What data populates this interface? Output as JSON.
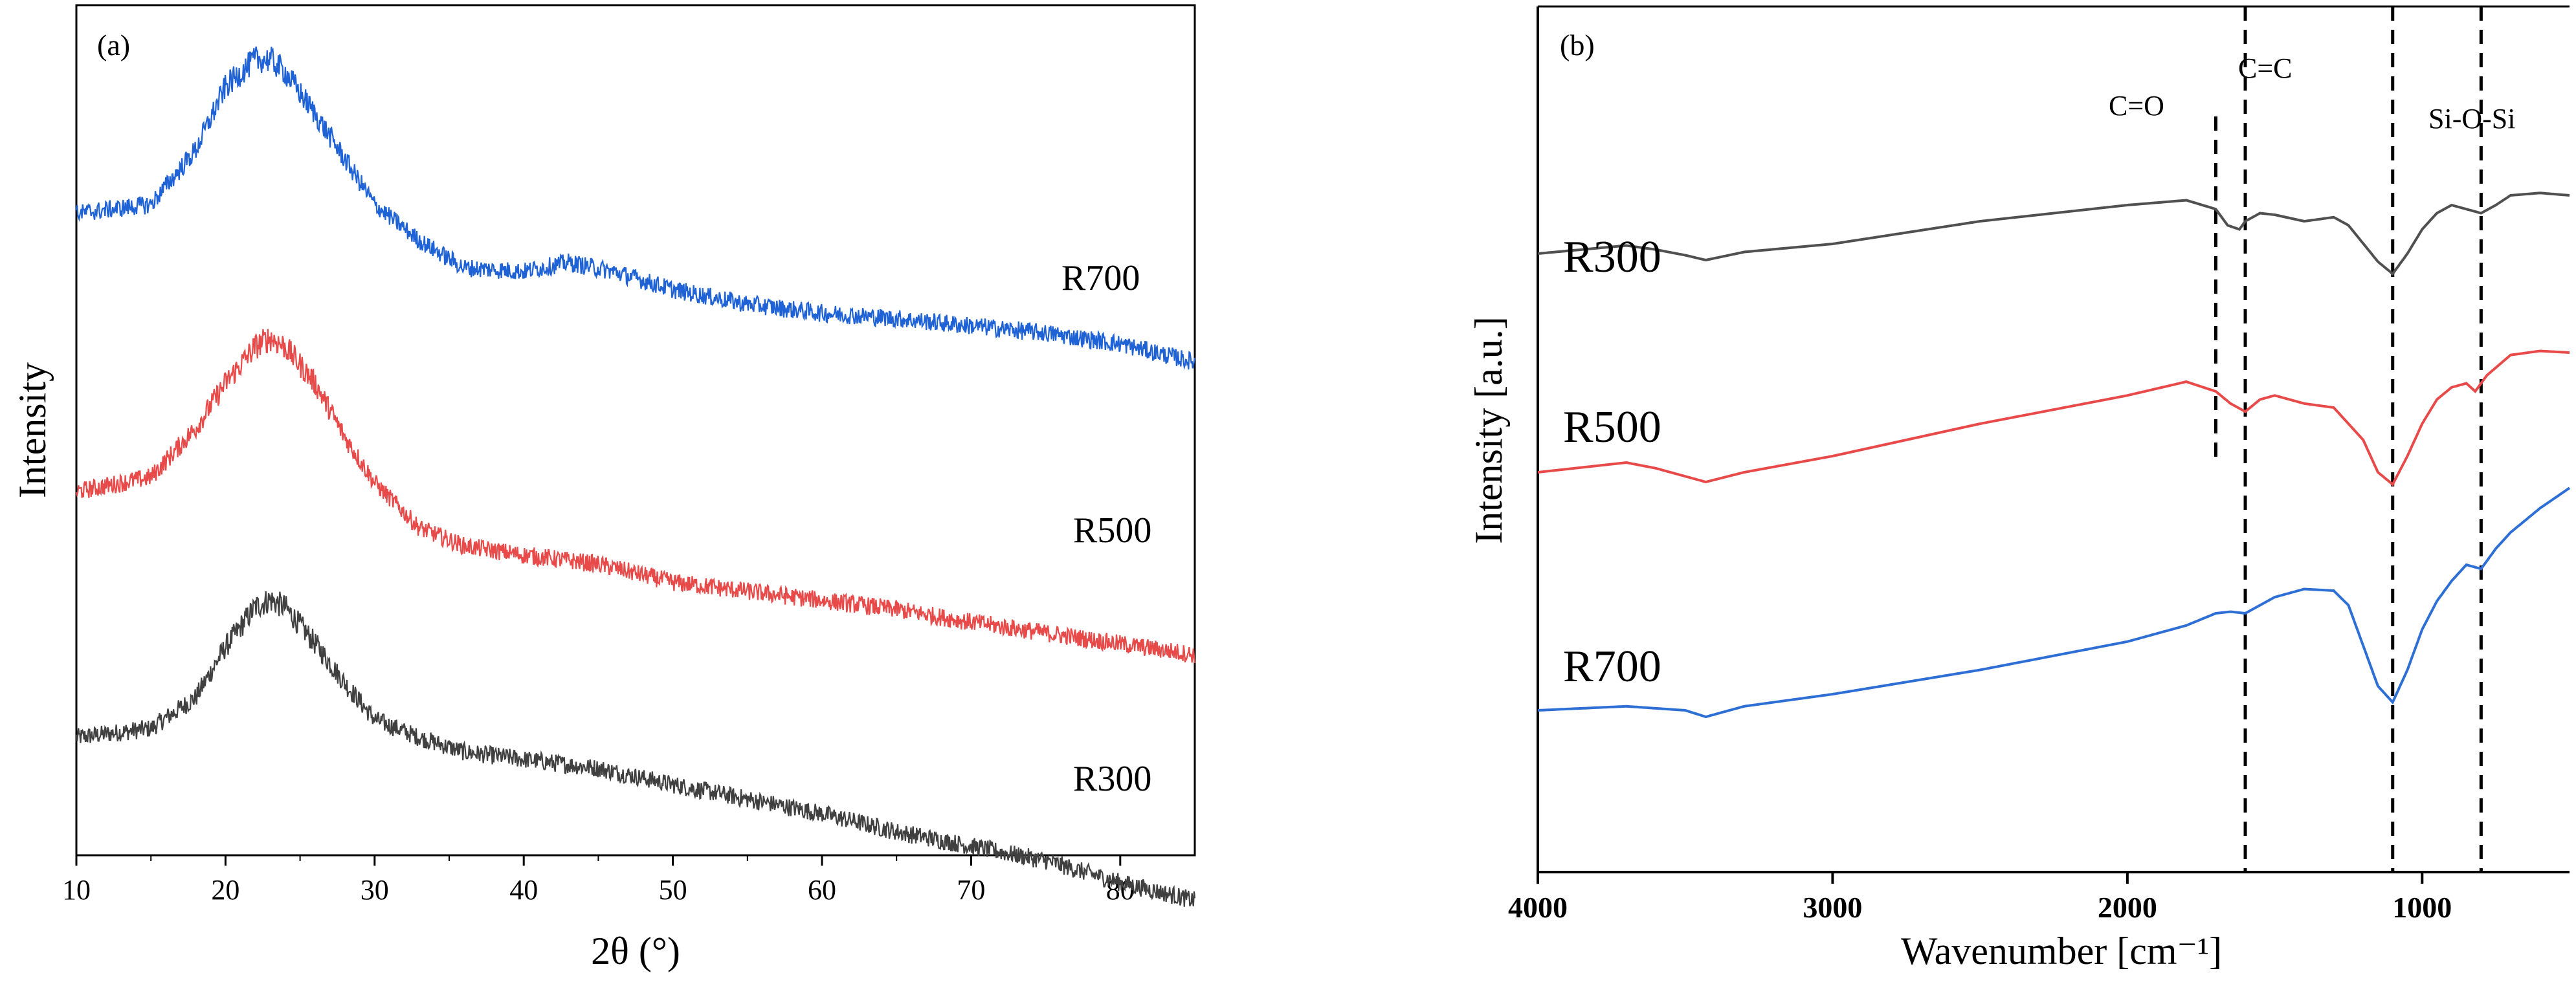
{
  "chart_data": [
    {
      "type": "line",
      "panel_label": "(a)",
      "xlabel": "2θ (°)",
      "ylabel": "Intensity",
      "xlim": [
        10,
        85
      ],
      "xticks": [
        10,
        20,
        30,
        40,
        50,
        60,
        70,
        80
      ],
      "yticks_shown": false,
      "noise": 0.05,
      "series": [
        {
          "name": "R300",
          "color": "#404040",
          "points": [
            [
              10,
              0.0
            ],
            [
              15,
              0.05
            ],
            [
              18,
              0.22
            ],
            [
              20,
              0.5
            ],
            [
              22,
              0.72
            ],
            [
              23,
              0.76
            ],
            [
              24,
              0.72
            ],
            [
              26,
              0.52
            ],
            [
              28,
              0.3
            ],
            [
              30,
              0.1
            ],
            [
              33,
              0.0
            ],
            [
              36,
              -0.08
            ],
            [
              40,
              -0.12
            ],
            [
              45,
              -0.17
            ],
            [
              50,
              -0.26
            ],
            [
              55,
              -0.34
            ],
            [
              60,
              -0.42
            ],
            [
              65,
              -0.52
            ],
            [
              70,
              -0.6
            ],
            [
              75,
              -0.68
            ],
            [
              80,
              -0.8
            ],
            [
              85,
              -0.9
            ]
          ]
        },
        {
          "name": "R500",
          "color": "#e84a4a",
          "points": [
            [
              10,
              0.0
            ],
            [
              15,
              0.08
            ],
            [
              18,
              0.35
            ],
            [
              20,
              0.6
            ],
            [
              22,
              0.8
            ],
            [
              23,
              0.85
            ],
            [
              24,
              0.8
            ],
            [
              26,
              0.6
            ],
            [
              28,
              0.3
            ],
            [
              30,
              0.05
            ],
            [
              33,
              -0.2
            ],
            [
              36,
              -0.3
            ],
            [
              40,
              -0.35
            ],
            [
              45,
              -0.4
            ],
            [
              50,
              -0.5
            ],
            [
              55,
              -0.55
            ],
            [
              60,
              -0.6
            ],
            [
              65,
              -0.65
            ],
            [
              70,
              -0.72
            ],
            [
              75,
              -0.78
            ],
            [
              80,
              -0.84
            ],
            [
              85,
              -0.9
            ]
          ]
        },
        {
          "name": "R700",
          "color": "#1e62d6",
          "points": [
            [
              10,
              0.0
            ],
            [
              15,
              0.05
            ],
            [
              18,
              0.35
            ],
            [
              20,
              0.7
            ],
            [
              22,
              0.85
            ],
            [
              23,
              0.85
            ],
            [
              24,
              0.78
            ],
            [
              26,
              0.55
            ],
            [
              28,
              0.3
            ],
            [
              30,
              0.05
            ],
            [
              33,
              -0.15
            ],
            [
              36,
              -0.3
            ],
            [
              40,
              -0.32
            ],
            [
              43,
              -0.27
            ],
            [
              46,
              -0.32
            ],
            [
              50,
              -0.42
            ],
            [
              55,
              -0.5
            ],
            [
              60,
              -0.55
            ],
            [
              65,
              -0.58
            ],
            [
              70,
              -0.62
            ],
            [
              75,
              -0.66
            ],
            [
              80,
              -0.72
            ],
            [
              85,
              -0.82
            ]
          ]
        }
      ]
    },
    {
      "type": "line",
      "panel_label": "(b)",
      "xlabel": "Wavenumber [cm⁻¹]",
      "ylabel": "Intensity [a.u.]",
      "xlim": [
        4000,
        500
      ],
      "xticks": [
        4000,
        3000,
        2000,
        1000
      ],
      "yticks_shown": false,
      "noise": 0.0,
      "series": [
        {
          "name": "R300",
          "color": "#505050",
          "points": [
            [
              4000,
              0.0
            ],
            [
              3700,
              0.1
            ],
            [
              3600,
              0.05
            ],
            [
              3500,
              -0.02
            ],
            [
              3430,
              -0.08
            ],
            [
              3300,
              0.02
            ],
            [
              3000,
              0.12
            ],
            [
              2500,
              0.4
            ],
            [
              2000,
              0.6
            ],
            [
              1800,
              0.66
            ],
            [
              1700,
              0.55
            ],
            [
              1660,
              0.35
            ],
            [
              1620,
              0.3
            ],
            [
              1600,
              0.4
            ],
            [
              1550,
              0.5
            ],
            [
              1500,
              0.48
            ],
            [
              1400,
              0.4
            ],
            [
              1300,
              0.45
            ],
            [
              1250,
              0.35
            ],
            [
              1150,
              -0.1
            ],
            [
              1100,
              -0.25
            ],
            [
              1050,
              0.0
            ],
            [
              1000,
              0.3
            ],
            [
              950,
              0.5
            ],
            [
              900,
              0.6
            ],
            [
              850,
              0.55
            ],
            [
              800,
              0.5
            ],
            [
              750,
              0.6
            ],
            [
              700,
              0.72
            ],
            [
              600,
              0.75
            ],
            [
              500,
              0.72
            ]
          ]
        },
        {
          "name": "R500",
          "color": "#e84a4a",
          "points": [
            [
              4000,
              0.0
            ],
            [
              3700,
              0.12
            ],
            [
              3600,
              0.05
            ],
            [
              3500,
              -0.05
            ],
            [
              3430,
              -0.12
            ],
            [
              3300,
              0.0
            ],
            [
              3000,
              0.2
            ],
            [
              2500,
              0.6
            ],
            [
              2000,
              0.95
            ],
            [
              1800,
              1.12
            ],
            [
              1700,
              1.0
            ],
            [
              1650,
              0.85
            ],
            [
              1600,
              0.75
            ],
            [
              1550,
              0.9
            ],
            [
              1500,
              0.95
            ],
            [
              1400,
              0.85
            ],
            [
              1300,
              0.8
            ],
            [
              1200,
              0.4
            ],
            [
              1150,
              0.0
            ],
            [
              1100,
              -0.15
            ],
            [
              1050,
              0.2
            ],
            [
              1000,
              0.6
            ],
            [
              950,
              0.9
            ],
            [
              900,
              1.05
            ],
            [
              850,
              1.1
            ],
            [
              820,
              1.0
            ],
            [
              780,
              1.2
            ],
            [
              700,
              1.45
            ],
            [
              600,
              1.5
            ],
            [
              500,
              1.48
            ]
          ]
        },
        {
          "name": "R700",
          "color": "#2e6fd6",
          "points": [
            [
              4000,
              0.0
            ],
            [
              3700,
              0.05
            ],
            [
              3500,
              0.0
            ],
            [
              3430,
              -0.08
            ],
            [
              3300,
              0.05
            ],
            [
              3000,
              0.2
            ],
            [
              2500,
              0.5
            ],
            [
              2000,
              0.85
            ],
            [
              1800,
              1.05
            ],
            [
              1700,
              1.2
            ],
            [
              1650,
              1.22
            ],
            [
              1600,
              1.2
            ],
            [
              1500,
              1.4
            ],
            [
              1400,
              1.5
            ],
            [
              1300,
              1.48
            ],
            [
              1250,
              1.3
            ],
            [
              1200,
              0.8
            ],
            [
              1150,
              0.3
            ],
            [
              1100,
              0.1
            ],
            [
              1050,
              0.5
            ],
            [
              1000,
              1.0
            ],
            [
              950,
              1.35
            ],
            [
              900,
              1.6
            ],
            [
              850,
              1.8
            ],
            [
              800,
              1.75
            ],
            [
              750,
              2.0
            ],
            [
              700,
              2.2
            ],
            [
              600,
              2.5
            ],
            [
              500,
              2.75
            ]
          ]
        }
      ],
      "annotations": [
        {
          "label": "C=O",
          "x": 1700
        },
        {
          "label": "C=C",
          "x": 1600
        },
        {
          "label": "",
          "x": 1100
        },
        {
          "label": "Si-O-Si",
          "x": 800
        }
      ]
    }
  ]
}
